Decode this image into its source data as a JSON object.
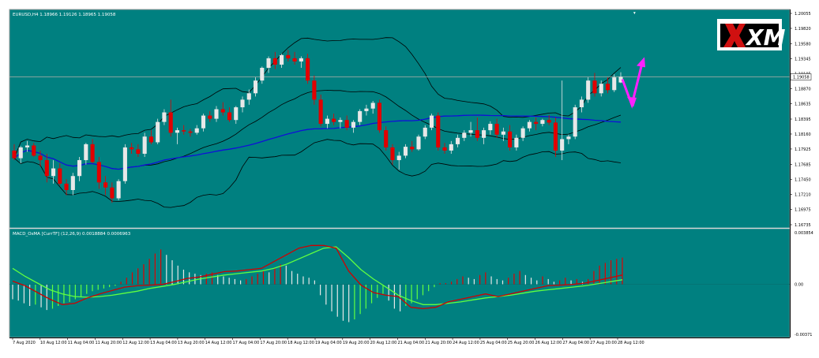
{
  "window": {
    "symbol_info": "EURUSD,H4  1.18966 1.19126 1.18965 1.19058",
    "corner_marker": "▾"
  },
  "logo": {
    "text": "XM"
  },
  "colors": {
    "background": "#008080",
    "bull_candle": "#e8e8e8",
    "bear_candle": "#e10000",
    "bands": "#000000",
    "moving_average": "#1010d8",
    "macd_line": "#d00000",
    "signal_line": "#60ff40",
    "forecast_arrow": "#ff20ff",
    "price_line": "#b0b0a8"
  },
  "chart_data": [
    {
      "type": "candlestick",
      "title": "EURUSD,H4  1.18966 1.19126 1.18965 1.19058",
      "ylim": [
        1.16735,
        1.20055
      ],
      "y_ticks": [
        "1.20055",
        "1.19820",
        "1.19580",
        "1.19345",
        "1.19105",
        "1.18870",
        "1.18635",
        "1.18395",
        "1.18160",
        "1.17925",
        "1.17685",
        "1.17450",
        "1.17210",
        "1.16975",
        "1.16735"
      ],
      "current_price": "1.19058",
      "x_ticks": [
        "7 Aug 2020",
        "10 Aug 12:00",
        "11 Aug 04:00",
        "11 Aug 20:00",
        "12 Aug 12:00",
        "13 Aug 04:00",
        "13 Aug 20:00",
        "14 Aug 12:00",
        "17 Aug 04:00",
        "17 Aug 20:00",
        "18 Aug 12:00",
        "19 Aug 04:00",
        "19 Aug 20:00",
        "20 Aug 12:00",
        "21 Aug 04:00",
        "21 Aug 20:00",
        "24 Aug 12:00",
        "25 Aug 04:00",
        "25 Aug 20:00",
        "26 Aug 12:00",
        "27 Aug 04:00",
        "27 Aug 20:00",
        "28 Aug 12:00"
      ],
      "candles": [
        [
          1.179,
          1.18,
          1.1775,
          1.1778
        ],
        [
          1.1778,
          1.1797,
          1.177,
          1.1795
        ],
        [
          1.1795,
          1.1805,
          1.1788,
          1.1798
        ],
        [
          1.1798,
          1.1802,
          1.178,
          1.1782
        ],
        [
          1.1782,
          1.179,
          1.1765,
          1.1775
        ],
        [
          1.1775,
          1.1785,
          1.174,
          1.175
        ],
        [
          1.175,
          1.1775,
          1.1738,
          1.1762
        ],
        [
          1.1762,
          1.177,
          1.1735,
          1.1738
        ],
        [
          1.1738,
          1.1745,
          1.172,
          1.1728
        ],
        [
          1.1728,
          1.1755,
          1.172,
          1.175
        ],
        [
          1.175,
          1.178,
          1.1742,
          1.1775
        ],
        [
          1.1775,
          1.1802,
          1.1768,
          1.18
        ],
        [
          1.18,
          1.1808,
          1.177,
          1.1772
        ],
        [
          1.1772,
          1.178,
          1.173,
          1.174
        ],
        [
          1.174,
          1.175,
          1.172,
          1.1732
        ],
        [
          1.1732,
          1.174,
          1.1708,
          1.1715
        ],
        [
          1.1715,
          1.1745,
          1.1712,
          1.1742
        ],
        [
          1.1742,
          1.18,
          1.1738,
          1.1795
        ],
        [
          1.1795,
          1.1802,
          1.1785,
          1.1792
        ],
        [
          1.1792,
          1.18,
          1.178,
          1.1785
        ],
        [
          1.1785,
          1.1818,
          1.178,
          1.1812
        ],
        [
          1.1812,
          1.1822,
          1.18,
          1.1803
        ],
        [
          1.1803,
          1.184,
          1.18,
          1.1835
        ],
        [
          1.1835,
          1.1855,
          1.183,
          1.185
        ],
        [
          1.185,
          1.187,
          1.1812,
          1.1818
        ],
        [
          1.1818,
          1.1826,
          1.18,
          1.1822
        ],
        [
          1.1822,
          1.183,
          1.1815,
          1.182
        ],
        [
          1.182,
          1.1824,
          1.1812,
          1.1818
        ],
        [
          1.1818,
          1.183,
          1.1815,
          1.1825
        ],
        [
          1.1825,
          1.1848,
          1.182,
          1.1845
        ],
        [
          1.1845,
          1.1852,
          1.1835,
          1.184
        ],
        [
          1.184,
          1.186,
          1.1835,
          1.1855
        ],
        [
          1.1855,
          1.1866,
          1.1845,
          1.185
        ],
        [
          1.185,
          1.1858,
          1.1835,
          1.1838
        ],
        [
          1.1838,
          1.186,
          1.1832,
          1.1858
        ],
        [
          1.1858,
          1.1875,
          1.185,
          1.187
        ],
        [
          1.187,
          1.1886,
          1.1862,
          1.188
        ],
        [
          1.188,
          1.1905,
          1.1875,
          1.19
        ],
        [
          1.19,
          1.1922,
          1.1895,
          1.192
        ],
        [
          1.192,
          1.1938,
          1.1912,
          1.1935
        ],
        [
          1.1935,
          1.1945,
          1.1918,
          1.1925
        ],
        [
          1.1925,
          1.1942,
          1.192,
          1.194
        ],
        [
          1.194,
          1.1948,
          1.193,
          1.1935
        ],
        [
          1.1935,
          1.1945,
          1.1925,
          1.193
        ],
        [
          1.193,
          1.1938,
          1.192,
          1.1935
        ],
        [
          1.1935,
          1.1942,
          1.1895,
          1.19
        ],
        [
          1.19,
          1.1908,
          1.1862,
          1.187
        ],
        [
          1.187,
          1.1878,
          1.1828,
          1.1832
        ],
        [
          1.1832,
          1.1845,
          1.1825,
          1.184
        ],
        [
          1.184,
          1.1848,
          1.183,
          1.1835
        ],
        [
          1.1835,
          1.1842,
          1.1825,
          1.1838
        ],
        [
          1.1838,
          1.1845,
          1.1822,
          1.1826
        ],
        [
          1.1826,
          1.1838,
          1.1818,
          1.1835
        ],
        [
          1.1835,
          1.1855,
          1.183,
          1.1852
        ],
        [
          1.1852,
          1.1862,
          1.1845,
          1.1856
        ],
        [
          1.1856,
          1.1868,
          1.1848,
          1.1865
        ],
        [
          1.1865,
          1.187,
          1.1818,
          1.1822
        ],
        [
          1.1822,
          1.1828,
          1.179,
          1.1795
        ],
        [
          1.1795,
          1.18,
          1.1768,
          1.1775
        ],
        [
          1.1775,
          1.1788,
          1.176,
          1.1782
        ],
        [
          1.1782,
          1.18,
          1.1778,
          1.1796
        ],
        [
          1.1796,
          1.1805,
          1.1788,
          1.1792
        ],
        [
          1.1792,
          1.1815,
          1.179,
          1.1812
        ],
        [
          1.1812,
          1.183,
          1.1808,
          1.1826
        ],
        [
          1.1826,
          1.1848,
          1.1822,
          1.1845
        ],
        [
          1.1845,
          1.185,
          1.179,
          1.1795
        ],
        [
          1.1795,
          1.1802,
          1.1785,
          1.179
        ],
        [
          1.179,
          1.1805,
          1.1785,
          1.18
        ],
        [
          1.18,
          1.1815,
          1.1795,
          1.181
        ],
        [
          1.181,
          1.1822,
          1.1805,
          1.1818
        ],
        [
          1.1818,
          1.1835,
          1.1812,
          1.1822
        ],
        [
          1.1822,
          1.1842,
          1.1805,
          1.181
        ],
        [
          1.181,
          1.1826,
          1.18,
          1.1822
        ],
        [
          1.1822,
          1.1836,
          1.1815,
          1.1832
        ],
        [
          1.1832,
          1.184,
          1.181,
          1.1815
        ],
        [
          1.1815,
          1.1826,
          1.1805,
          1.182
        ],
        [
          1.182,
          1.183,
          1.179,
          1.1795
        ],
        [
          1.1795,
          1.1815,
          1.179,
          1.181
        ],
        [
          1.181,
          1.1828,
          1.1805,
          1.1825
        ],
        [
          1.1825,
          1.1838,
          1.182,
          1.1835
        ],
        [
          1.1835,
          1.1842,
          1.1822,
          1.1832
        ],
        [
          1.1832,
          1.184,
          1.1828,
          1.1838
        ],
        [
          1.1838,
          1.1846,
          1.183,
          1.1834
        ],
        [
          1.1834,
          1.1842,
          1.178,
          1.179
        ],
        [
          1.179,
          1.19,
          1.1775,
          1.1808
        ],
        [
          1.1808,
          1.1815,
          1.18,
          1.1812
        ],
        [
          1.1812,
          1.1862,
          1.1808,
          1.1858
        ],
        [
          1.1858,
          1.1875,
          1.185,
          1.187
        ],
        [
          1.187,
          1.1905,
          1.1865,
          1.19
        ],
        [
          1.19,
          1.1912,
          1.1875,
          1.188
        ],
        [
          1.188,
          1.19,
          1.1875,
          1.1895
        ],
        [
          1.1895,
          1.1905,
          1.188,
          1.1885
        ],
        [
          1.1885,
          1.191,
          1.1882,
          1.1905
        ],
        [
          1.1897,
          1.1913,
          1.1896,
          1.1906
        ]
      ]
    },
    {
      "type": "bar",
      "title": "MACD_OsMA [CurrTF] (12,26,9) 0.0018884 0.0006963",
      "ylim": [
        -0.00371,
        0.003854
      ],
      "y_ticks": [
        "0.003854",
        "0.00",
        "-0.00371"
      ],
      "histogram": [
        -0.0011,
        -0.0012,
        -0.0014,
        -0.0016,
        -0.0015,
        -0.0017,
        -0.0019,
        -0.0018,
        -0.0016,
        -0.0014,
        -0.0013,
        -0.0011,
        -0.0009,
        -0.0007,
        -0.0005,
        -0.0004,
        -0.0003,
        -0.0002,
        -0.0001,
        0.0002,
        0.0005,
        0.0009,
        0.0012,
        0.0015,
        0.0019,
        0.0023,
        0.0026,
        0.0022,
        0.0018,
        0.0014,
        0.0011,
        0.0009,
        0.0008,
        0.0007,
        0.0008,
        0.0009,
        0.0007,
        0.0006,
        0.0005,
        0.0004,
        0.0003,
        0.0004,
        0.0006,
        0.0008,
        0.001,
        0.0009,
        0.0012,
        0.0015,
        0.0014,
        0.001,
        0.0008,
        0.0006,
        0.0005,
        0.0003,
        -0.0008,
        -0.0015,
        -0.002,
        -0.0024,
        -0.0027,
        -0.0028,
        -0.0026,
        -0.0022,
        -0.0018,
        -0.0014,
        -0.001,
        -0.0007,
        -0.0012,
        -0.0018,
        -0.002,
        -0.0016,
        -0.0014,
        -0.0011,
        -0.0008,
        -0.0005,
        -0.0002,
        0.0001,
        0.0001,
        0.0002,
        0.0004,
        0.0006,
        0.0005,
        0.0004,
        0.0007,
        0.0009,
        0.0006,
        0.0004,
        0.0003,
        0.0005,
        0.0008,
        0.001,
        0.0007,
        0.0005,
        0.0003,
        0.0006,
        0.0004,
        0.0002,
        0.0003,
        0.0005,
        0.0003,
        0.0004,
        0.0002,
        0.0004,
        0.001,
        0.0014,
        0.0016,
        0.0018,
        0.0019,
        0.002
      ],
      "macd_line": [
        0.00025,
        -0.0001,
        -0.0006,
        -0.0011,
        -0.0015,
        -0.0014,
        -0.001,
        -0.0007,
        -0.00045,
        -0.0002,
        -0.0001,
        -5e-05,
        0.0,
        0.0002,
        0.00045,
        0.00055,
        0.00075,
        0.00095,
        0.001,
        0.0011,
        0.0012,
        0.0017,
        0.0022,
        0.0027,
        0.0029,
        0.0029,
        0.0027,
        0.001,
        -5e-05,
        -0.0006,
        -0.0008,
        -0.0009,
        -0.0017,
        -0.0018,
        -0.0017,
        -0.0013,
        -0.0011,
        -0.0009,
        -0.0007,
        -0.0009,
        -0.0007,
        -0.0005,
        -0.0003,
        -0.0001,
        -5e-05,
        0.0,
        0.0001,
        0.0003,
        0.0005,
        0.0007
      ],
      "signal_line": [
        0.0012,
        0.0006,
        0.0001,
        -0.0004,
        -0.0007,
        -0.0009,
        -0.00095,
        -0.0009,
        -0.0008,
        -0.00065,
        -0.0005,
        -0.0003,
        -0.00015,
        0.0,
        0.0002,
        0.0004,
        0.00055,
        0.0007,
        0.0008,
        0.0009,
        0.001,
        0.0012,
        0.0015,
        0.0019,
        0.0023,
        0.0027,
        0.0028,
        0.002,
        0.0011,
        0.0004,
        -0.0002,
        -0.0008,
        -0.0012,
        -0.0015,
        -0.0015,
        -0.0014,
        -0.0013,
        -0.00115,
        -0.001,
        -0.0009,
        -0.0008,
        -0.00065,
        -0.0005,
        -0.0004,
        -0.0003,
        -0.0002,
        -0.0001,
        5e-05,
        0.0002,
        0.00035
      ]
    }
  ]
}
